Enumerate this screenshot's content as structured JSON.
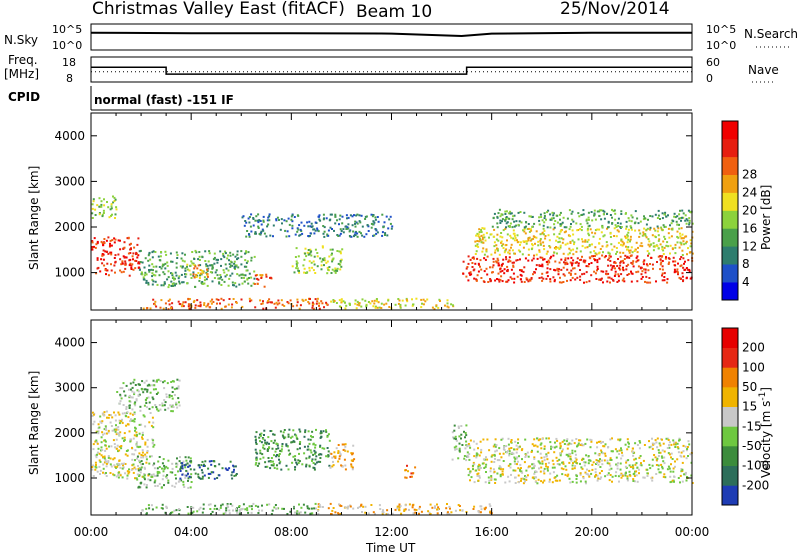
{
  "header": {
    "title": "Christmas Valley East (fitACF)",
    "beam": "Beam 10",
    "date": "25/Nov/2014"
  },
  "panels": {
    "nsky_label": "N.Sky",
    "nsky_ticks": [
      "10^5",
      "10^0"
    ],
    "nsearch_label": "N.Search",
    "nsearch_ticks": [
      "10^5",
      "10^0"
    ],
    "freq_label_1": "Freq.",
    "freq_label_2": "[MHz]",
    "freq_ticks": [
      "18",
      "8"
    ],
    "nave_label": "Nave",
    "nave_ticks": [
      "60",
      "0"
    ],
    "cpid_label": "CPID",
    "cpid_text": "normal (fast) -151 IF"
  },
  "chart_data": [
    {
      "type": "line",
      "name": "nsky-nsearch-panel",
      "series": [
        {
          "name": "N.Sky",
          "x_hours": [
            0,
            4,
            8,
            12,
            14.8,
            16,
            20,
            24
          ],
          "y_log10": [
            3.4,
            3.3,
            3.3,
            3.2,
            2.7,
            3.2,
            3.4,
            3.4
          ]
        }
      ]
    },
    {
      "type": "line",
      "name": "frequency-nave-panel",
      "ylim": [
        8,
        18
      ],
      "series": [
        {
          "name": "Freq.",
          "x_hours": [
            0,
            3,
            3,
            15,
            15,
            24
          ],
          "y": [
            14,
            14,
            11,
            11,
            14,
            14
          ]
        },
        {
          "name": "Nave",
          "x_hours": [
            0,
            24
          ],
          "y": [
            12,
            12
          ]
        }
      ]
    },
    {
      "type": "heatmap",
      "name": "power-panel",
      "xlabel": "Time UT",
      "ylabel": "Slant Range [km]",
      "xlim": [
        0,
        24
      ],
      "ylim": [
        180,
        4500
      ],
      "x_ticks": [
        "00:00",
        "04:00",
        "08:00",
        "12:00",
        "16:00",
        "20:00",
        "00:00"
      ],
      "y_ticks": [
        1000,
        2000,
        3000,
        4000
      ],
      "colorbar": {
        "label": "Power [dB]",
        "ticks": [
          4,
          8,
          12,
          16,
          20,
          24,
          28
        ],
        "colors": [
          "#0000e6",
          "#1e50c8",
          "#2e7d6e",
          "#4aa04a",
          "#8cd23c",
          "#f0e020",
          "#f0a010",
          "#f06010",
          "#e61e10",
          "#f00000"
        ]
      },
      "regions": [
        {
          "t": [
            0.0,
            1.9
          ],
          "r": [
            950,
            1800
          ],
          "level": 8
        },
        {
          "t": [
            0.0,
            1.0
          ],
          "r": [
            2200,
            2700
          ],
          "level": 4
        },
        {
          "t": [
            1.9,
            6.5
          ],
          "r": [
            700,
            1500
          ],
          "level": 3
        },
        {
          "t": [
            3.8,
            4.8
          ],
          "r": [
            900,
            1200
          ],
          "level": 6
        },
        {
          "t": [
            6.5,
            7.2
          ],
          "r": [
            700,
            1000
          ],
          "level": 7
        },
        {
          "t": [
            6.0,
            12.0
          ],
          "r": [
            1800,
            2300
          ],
          "level": 2
        },
        {
          "t": [
            8.0,
            10.0
          ],
          "r": [
            1000,
            1600
          ],
          "level": 4
        },
        {
          "t": [
            14.8,
            24.0
          ],
          "r": [
            800,
            1400
          ],
          "level": 8
        },
        {
          "t": [
            15.3,
            24.0
          ],
          "r": [
            1400,
            2000
          ],
          "level": 5
        },
        {
          "t": [
            16.0,
            24.0
          ],
          "r": [
            2000,
            2400
          ],
          "level": 3
        },
        {
          "t": [
            2.0,
            9.5
          ],
          "r": [
            220,
            450
          ],
          "level": 7
        },
        {
          "t": [
            9.5,
            14.5
          ],
          "r": [
            220,
            450
          ],
          "level": 5
        }
      ]
    },
    {
      "type": "heatmap",
      "name": "velocity-panel",
      "xlabel": "Time UT",
      "ylabel": "Slant Range [km]",
      "xlim": [
        0,
        24
      ],
      "ylim": [
        180,
        4500
      ],
      "x_ticks": [
        "00:00",
        "04:00",
        "08:00",
        "12:00",
        "16:00",
        "20:00",
        "00:00"
      ],
      "y_ticks": [
        1000,
        2000,
        3000,
        4000
      ],
      "colorbar": {
        "label": "Velocity [m s^-1]",
        "ticks": [
          200,
          100,
          50,
          15,
          -15,
          -50,
          -100,
          -200
        ],
        "colors": [
          "#1e3cb4",
          "#2d6e5a",
          "#3c8c3c",
          "#6ec840",
          "#c8c8c8",
          "#f0b400",
          "#f08200",
          "#e62814",
          "#e60000"
        ]
      },
      "regions": [
        {
          "t": [
            0.0,
            2.5
          ],
          "r": [
            1000,
            2500
          ],
          "level": 4
        },
        {
          "t": [
            1.0,
            3.5
          ],
          "r": [
            2500,
            3200
          ],
          "level": 3
        },
        {
          "t": [
            1.8,
            4.0
          ],
          "r": [
            800,
            1500
          ],
          "level": 3
        },
        {
          "t": [
            3.5,
            5.8
          ],
          "r": [
            1000,
            1400
          ],
          "level": 1
        },
        {
          "t": [
            6.5,
            9.5
          ],
          "r": [
            1200,
            2100
          ],
          "level": 2
        },
        {
          "t": [
            9.5,
            10.5
          ],
          "r": [
            1200,
            1800
          ],
          "level": 5
        },
        {
          "t": [
            12.5,
            13.0
          ],
          "r": [
            1000,
            1300
          ],
          "level": 6
        },
        {
          "t": [
            14.4,
            15.0
          ],
          "r": [
            1400,
            2200
          ],
          "level": 3
        },
        {
          "t": [
            15.0,
            24.0
          ],
          "r": [
            900,
            1900
          ],
          "level": 4
        },
        {
          "t": [
            2.0,
            9.0
          ],
          "r": [
            220,
            450
          ],
          "level": 3
        },
        {
          "t": [
            9.0,
            16.0
          ],
          "r": [
            220,
            450
          ],
          "level": 5
        }
      ]
    }
  ]
}
